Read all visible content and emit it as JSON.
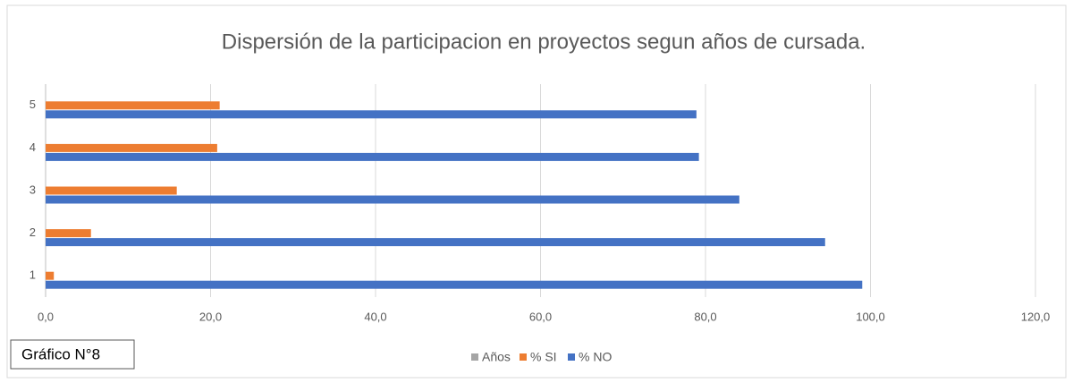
{
  "chart_data": {
    "type": "bar",
    "orientation": "horizontal",
    "title": "Dispersión de la participacion en proyectos segun años de cursada.",
    "annotation": "Gráfico N°8",
    "categories": [
      "1",
      "2",
      "3",
      "4",
      "5"
    ],
    "series": [
      {
        "name": "Años",
        "color": "#a5a5a5",
        "values": [
          null,
          null,
          null,
          null,
          null
        ]
      },
      {
        "name": "% SI",
        "color": "#ed7d31",
        "values": [
          1.0,
          5.5,
          15.9,
          20.8,
          21.1
        ]
      },
      {
        "name": "% NO",
        "color": "#4472c4",
        "values": [
          99.0,
          94.5,
          84.1,
          79.2,
          78.9
        ]
      }
    ],
    "xlim": [
      0,
      120
    ],
    "xticks": [
      {
        "value": 0,
        "label": "0,0"
      },
      {
        "value": 20,
        "label": "20,0"
      },
      {
        "value": 40,
        "label": "40,0"
      },
      {
        "value": 60,
        "label": "60,0"
      },
      {
        "value": 80,
        "label": "80,0"
      },
      {
        "value": 100,
        "label": "100,0"
      },
      {
        "value": 120,
        "label": "120,0"
      }
    ],
    "grid": true,
    "legend": "bottom"
  }
}
